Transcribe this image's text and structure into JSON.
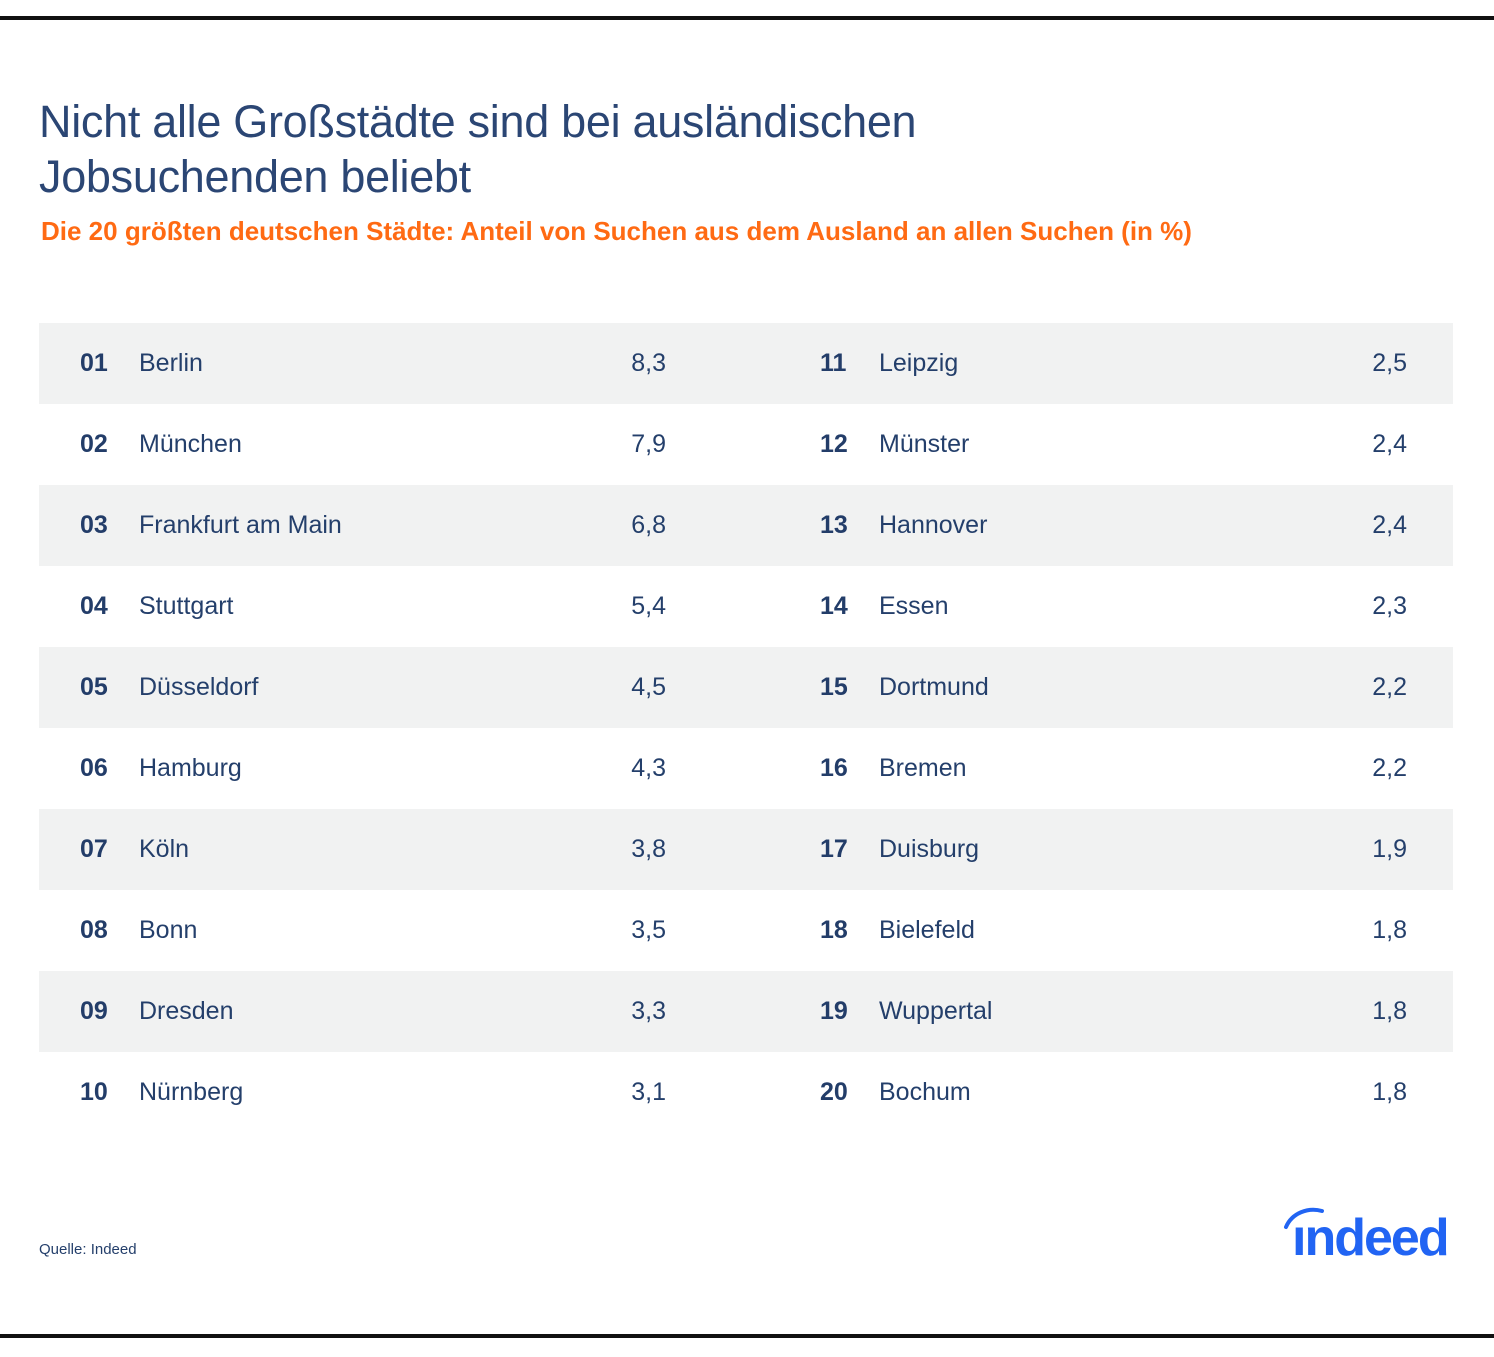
{
  "title_line1": "Nicht alle Großstädte sind bei ausländischen",
  "title_line2": "Jobsuchenden beliebt",
  "subtitle": "Die 20 größten deutschen Städte: Anteil von Suchen aus dem Ausland an allen Suchen (in %)",
  "source": "Quelle: Indeed",
  "logo_text": "indeed",
  "colors": {
    "title": "#2b4674",
    "subtitle": "#ff6a13",
    "row_shade": "#f1f2f2",
    "logo": "#2164f3"
  },
  "chart_data": {
    "type": "table",
    "title": "Nicht alle Großstädte sind bei ausländischen Jobsuchenden beliebt",
    "subtitle": "Die 20 größten deutschen Städte: Anteil von Suchen aus dem Ausland an allen Suchen (in %)",
    "rows": [
      {
        "rank": "01",
        "city": "Berlin",
        "value": "8,3"
      },
      {
        "rank": "02",
        "city": "München",
        "value": "7,9"
      },
      {
        "rank": "03",
        "city": "Frankfurt am Main",
        "value": "6,8"
      },
      {
        "rank": "04",
        "city": "Stuttgart",
        "value": "5,4"
      },
      {
        "rank": "05",
        "city": "Düsseldorf",
        "value": "4,5"
      },
      {
        "rank": "06",
        "city": "Hamburg",
        "value": "4,3"
      },
      {
        "rank": "07",
        "city": "Köln",
        "value": "3,8"
      },
      {
        "rank": "08",
        "city": "Bonn",
        "value": "3,5"
      },
      {
        "rank": "09",
        "city": "Dresden",
        "value": "3,3"
      },
      {
        "rank": "10",
        "city": "Nürnberg",
        "value": "3,1"
      },
      {
        "rank": "11",
        "city": "Leipzig",
        "value": "2,5"
      },
      {
        "rank": "12",
        "city": "Münster",
        "value": "2,4"
      },
      {
        "rank": "13",
        "city": "Hannover",
        "value": "2,4"
      },
      {
        "rank": "14",
        "city": "Essen",
        "value": "2,3"
      },
      {
        "rank": "15",
        "city": "Dortmund",
        "value": "2,2"
      },
      {
        "rank": "16",
        "city": "Bremen",
        "value": "2,2"
      },
      {
        "rank": "17",
        "city": "Duisburg",
        "value": "1,9"
      },
      {
        "rank": "18",
        "city": "Bielefeld",
        "value": "1,8"
      },
      {
        "rank": "19",
        "city": "Wuppertal",
        "value": "1,8"
      },
      {
        "rank": "20",
        "city": "Bochum",
        "value": "1,8"
      }
    ]
  }
}
